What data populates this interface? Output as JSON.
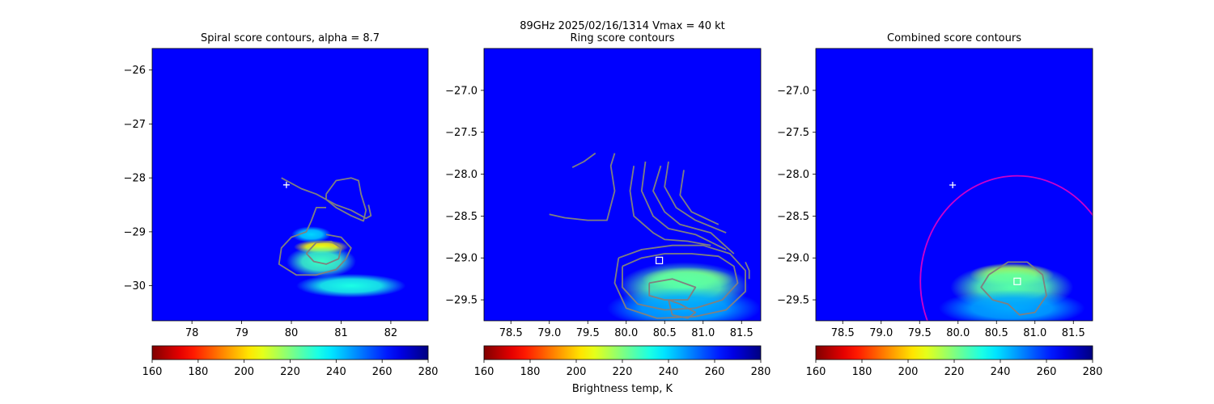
{
  "figure": {
    "suptitle": "89GHz  2025/02/16/1314    Vmax = 40 kt",
    "colorbar_label": "Brightness temp, K"
  },
  "chart_data": [
    {
      "type": "heatmap",
      "title": "Spiral score contours, alpha =  8.7",
      "xlim": [
        77.2,
        82.75
      ],
      "ylim": [
        -30.65,
        -25.6
      ],
      "xticks": [
        78,
        79,
        80,
        81,
        82
      ],
      "xtick_labels": [
        "78",
        "79",
        "80",
        "81",
        "82"
      ],
      "yticks": [
        -26,
        -27,
        -28,
        -29,
        -30
      ],
      "ytick_labels": [
        "−26",
        "−27",
        "−28",
        "−29",
        "−30"
      ],
      "background_tb": 265,
      "colorbar": {
        "min": 160,
        "max": 280,
        "ticks": [
          160,
          180,
          200,
          220,
          240,
          260,
          280
        ],
        "tick_labels": [
          "160",
          "180",
          "200",
          "220",
          "240",
          "260",
          "280"
        ],
        "colormap": "jet_r"
      },
      "markers": [
        {
          "shape": "plus",
          "x": 79.9,
          "y": -28.13,
          "color": "#ffffff"
        }
      ],
      "features": [
        {
          "x": 80.6,
          "y": -29.28,
          "tb": 205,
          "rx": 0.55,
          "ry": 0.13
        },
        {
          "x": 80.6,
          "y": -29.55,
          "tb": 228,
          "rx": 0.7,
          "ry": 0.3
        },
        {
          "x": 81.2,
          "y": -30.0,
          "tb": 232,
          "rx": 1.1,
          "ry": 0.22
        },
        {
          "x": 80.4,
          "y": -29.05,
          "tb": 240,
          "rx": 0.4,
          "ry": 0.15
        }
      ],
      "contours": [
        {
          "color": "#808080",
          "points": [
            [
              79.8,
              -28.0
            ],
            [
              80.2,
              -28.2
            ],
            [
              80.5,
              -28.3
            ],
            [
              80.9,
              -28.5
            ],
            [
              81.2,
              -28.6
            ],
            [
              81.5,
              -28.75
            ],
            [
              81.6,
              -28.7
            ],
            [
              81.55,
              -28.5
            ]
          ]
        },
        {
          "color": "#808080",
          "points": [
            [
              80.7,
              -28.3
            ],
            [
              80.9,
              -28.05
            ],
            [
              81.2,
              -28.0
            ],
            [
              81.35,
              -28.05
            ],
            [
              81.4,
              -28.3
            ],
            [
              81.5,
              -28.6
            ],
            [
              81.45,
              -28.8
            ],
            [
              81.2,
              -28.7
            ],
            [
              80.9,
              -28.55
            ],
            [
              80.7,
              -28.4
            ],
            [
              80.7,
              -28.3
            ]
          ]
        },
        {
          "color": "#808080",
          "points": [
            [
              80.7,
              -28.55
            ],
            [
              80.5,
              -28.55
            ],
            [
              80.4,
              -28.8
            ],
            [
              80.3,
              -29.0
            ],
            [
              80.0,
              -29.1
            ],
            [
              79.8,
              -29.3
            ],
            [
              79.75,
              -29.6
            ],
            [
              80.1,
              -29.8
            ],
            [
              80.5,
              -29.8
            ],
            [
              80.9,
              -29.7
            ],
            [
              81.1,
              -29.5
            ],
            [
              81.2,
              -29.3
            ],
            [
              81.0,
              -29.1
            ],
            [
              80.7,
              -29.05
            ]
          ]
        },
        {
          "color": "#808080",
          "points": [
            [
              80.3,
              -29.4
            ],
            [
              80.5,
              -29.2
            ],
            [
              80.8,
              -29.18
            ],
            [
              81.0,
              -29.3
            ],
            [
              80.95,
              -29.5
            ],
            [
              80.7,
              -29.6
            ],
            [
              80.45,
              -29.55
            ],
            [
              80.3,
              -29.4
            ]
          ]
        }
      ]
    },
    {
      "type": "heatmap",
      "title": "Ring score contours",
      "xlim": [
        78.15,
        81.75
      ],
      "ylim": [
        -29.75,
        -26.5
      ],
      "xticks": [
        78.5,
        79.0,
        79.5,
        80.0,
        80.5,
        81.0,
        81.5
      ],
      "xtick_labels": [
        "78.5",
        "79.0",
        "79.5",
        "80.0",
        "80.5",
        "81.0",
        "81.5"
      ],
      "yticks": [
        -27.0,
        -27.5,
        -28.0,
        -28.5,
        -29.0,
        -29.5
      ],
      "ytick_labels": [
        "−27.0",
        "−27.5",
        "−28.0",
        "−28.5",
        "−29.0",
        "−29.5"
      ],
      "background_tb": 265,
      "colorbar": {
        "min": 160,
        "max": 280,
        "ticks": [
          160,
          180,
          200,
          220,
          240,
          260,
          280
        ],
        "tick_labels": [
          "160",
          "180",
          "200",
          "220",
          "240",
          "260",
          "280"
        ],
        "colormap": "jet_r"
      },
      "markers": [
        {
          "shape": "square",
          "x": 80.43,
          "y": -29.03,
          "color": "#ffffff"
        }
      ],
      "features": [
        {
          "x": 80.8,
          "y": -29.25,
          "tb": 212,
          "rx": 0.6,
          "ry": 0.14
        },
        {
          "x": 80.75,
          "y": -29.35,
          "tb": 225,
          "rx": 0.85,
          "ry": 0.3
        },
        {
          "x": 80.75,
          "y": -29.6,
          "tb": 245,
          "rx": 1.0,
          "ry": 0.25
        }
      ],
      "contours": [
        {
          "color": "#808080",
          "points": [
            [
              79.3,
              -27.92
            ],
            [
              79.45,
              -27.85
            ],
            [
              79.6,
              -27.75
            ]
          ]
        },
        {
          "color": "#808080",
          "points": [
            [
              79.0,
              -28.48
            ],
            [
              79.2,
              -28.52
            ],
            [
              79.5,
              -28.55
            ],
            [
              79.75,
              -28.55
            ],
            [
              79.85,
              -28.2
            ],
            [
              79.8,
              -27.9
            ],
            [
              79.85,
              -27.75
            ]
          ]
        },
        {
          "color": "#808080",
          "points": [
            [
              80.1,
              -27.9
            ],
            [
              80.05,
              -28.2
            ],
            [
              80.1,
              -28.5
            ],
            [
              80.35,
              -28.7
            ],
            [
              80.5,
              -28.78
            ],
            [
              80.8,
              -28.8
            ],
            [
              81.1,
              -28.85
            ]
          ]
        },
        {
          "color": "#808080",
          "points": [
            [
              80.25,
              -27.85
            ],
            [
              80.2,
              -28.2
            ],
            [
              80.35,
              -28.5
            ],
            [
              80.55,
              -28.65
            ],
            [
              80.9,
              -28.72
            ],
            [
              81.3,
              -28.9
            ]
          ]
        },
        {
          "color": "#808080",
          "points": [
            [
              80.45,
              -27.9
            ],
            [
              80.35,
              -28.2
            ],
            [
              80.5,
              -28.45
            ],
            [
              80.7,
              -28.6
            ],
            [
              81.1,
              -28.7
            ],
            [
              81.4,
              -28.95
            ]
          ]
        },
        {
          "color": "#808080",
          "points": [
            [
              80.55,
              -27.85
            ],
            [
              80.5,
              -28.15
            ],
            [
              80.65,
              -28.4
            ],
            [
              80.9,
              -28.55
            ],
            [
              81.3,
              -28.7
            ]
          ]
        },
        {
          "color": "#808080",
          "points": [
            [
              80.75,
              -27.95
            ],
            [
              80.7,
              -28.25
            ],
            [
              80.85,
              -28.45
            ],
            [
              81.2,
              -28.6
            ]
          ]
        },
        {
          "color": "#808080",
          "points": [
            [
              79.95,
              -29.1
            ],
            [
              79.95,
              -29.35
            ],
            [
              80.15,
              -29.55
            ],
            [
              80.5,
              -29.62
            ],
            [
              80.9,
              -29.6
            ],
            [
              81.25,
              -29.5
            ],
            [
              81.45,
              -29.3
            ],
            [
              81.4,
              -29.1
            ],
            [
              81.2,
              -28.98
            ],
            [
              80.85,
              -28.95
            ],
            [
              80.5,
              -28.95
            ],
            [
              80.2,
              -29.0
            ],
            [
              79.95,
              -29.1
            ]
          ]
        },
        {
          "color": "#808080",
          "points": [
            [
              79.9,
              -29.0
            ],
            [
              79.85,
              -29.3
            ],
            [
              80.0,
              -29.6
            ],
            [
              80.4,
              -29.72
            ],
            [
              80.9,
              -29.7
            ],
            [
              81.3,
              -29.62
            ],
            [
              81.55,
              -29.4
            ],
            [
              81.55,
              -29.15
            ],
            [
              81.35,
              -28.95
            ],
            [
              81.0,
              -28.85
            ],
            [
              80.6,
              -28.85
            ],
            [
              80.2,
              -28.9
            ],
            [
              79.9,
              -29.0
            ]
          ]
        },
        {
          "color": "#808080",
          "points": [
            [
              80.3,
              -29.3
            ],
            [
              80.6,
              -29.25
            ],
            [
              80.9,
              -29.35
            ],
            [
              80.8,
              -29.5
            ],
            [
              80.5,
              -29.5
            ],
            [
              80.3,
              -29.45
            ],
            [
              80.3,
              -29.3
            ]
          ]
        },
        {
          "color": "#808080",
          "points": [
            [
              80.55,
              -29.5
            ],
            [
              80.7,
              -29.55
            ],
            [
              80.9,
              -29.65
            ],
            [
              80.8,
              -29.72
            ],
            [
              80.6,
              -29.68
            ],
            [
              80.55,
              -29.5
            ]
          ]
        },
        {
          "color": "#808080",
          "points": [
            [
              81.55,
              -29.05
            ],
            [
              81.6,
              -29.15
            ],
            [
              81.6,
              -29.25
            ]
          ]
        }
      ]
    },
    {
      "type": "heatmap",
      "title": "Combined score contours",
      "xlim": [
        78.15,
        81.75
      ],
      "ylim": [
        -29.75,
        -26.5
      ],
      "xticks": [
        78.5,
        79.0,
        79.5,
        80.0,
        80.5,
        81.0,
        81.5
      ],
      "xtick_labels": [
        "78.5",
        "79.0",
        "79.5",
        "80.0",
        "80.5",
        "81.0",
        "81.5"
      ],
      "yticks": [
        -27.0,
        -27.5,
        -28.0,
        -28.5,
        -29.0,
        -29.5
      ],
      "ytick_labels": [
        "−27.0",
        "−27.5",
        "−28.0",
        "−28.5",
        "−29.0",
        "−29.5"
      ],
      "background_tb": 265,
      "colorbar": {
        "min": 160,
        "max": 280,
        "ticks": [
          160,
          180,
          200,
          220,
          240,
          260,
          280
        ],
        "tick_labels": [
          "160",
          "180",
          "200",
          "220",
          "240",
          "260",
          "280"
        ],
        "colormap": "jet_r"
      },
      "markers": [
        {
          "shape": "plus",
          "x": 79.93,
          "y": -28.13,
          "color": "#ffffff"
        },
        {
          "shape": "square",
          "x": 80.77,
          "y": -29.28,
          "color": "#ffffff"
        }
      ],
      "circle": {
        "cx": 80.77,
        "cy": -29.28,
        "r": 1.26,
        "color": "#cc00cc"
      },
      "features": [
        {
          "x": 80.7,
          "y": -29.2,
          "tb": 210,
          "rx": 0.55,
          "ry": 0.14
        },
        {
          "x": 80.7,
          "y": -29.35,
          "tb": 225,
          "rx": 0.8,
          "ry": 0.28
        },
        {
          "x": 80.7,
          "y": -29.6,
          "tb": 245,
          "rx": 0.95,
          "ry": 0.22
        }
      ],
      "contours": [
        {
          "color": "#808080",
          "points": [
            [
              80.4,
              -29.2
            ],
            [
              80.65,
              -29.05
            ],
            [
              80.9,
              -29.05
            ],
            [
              81.1,
              -29.2
            ],
            [
              81.15,
              -29.45
            ],
            [
              81.0,
              -29.65
            ],
            [
              80.8,
              -29.68
            ],
            [
              80.65,
              -29.55
            ],
            [
              80.45,
              -29.5
            ],
            [
              80.3,
              -29.35
            ],
            [
              80.4,
              -29.2
            ]
          ]
        }
      ]
    }
  ]
}
